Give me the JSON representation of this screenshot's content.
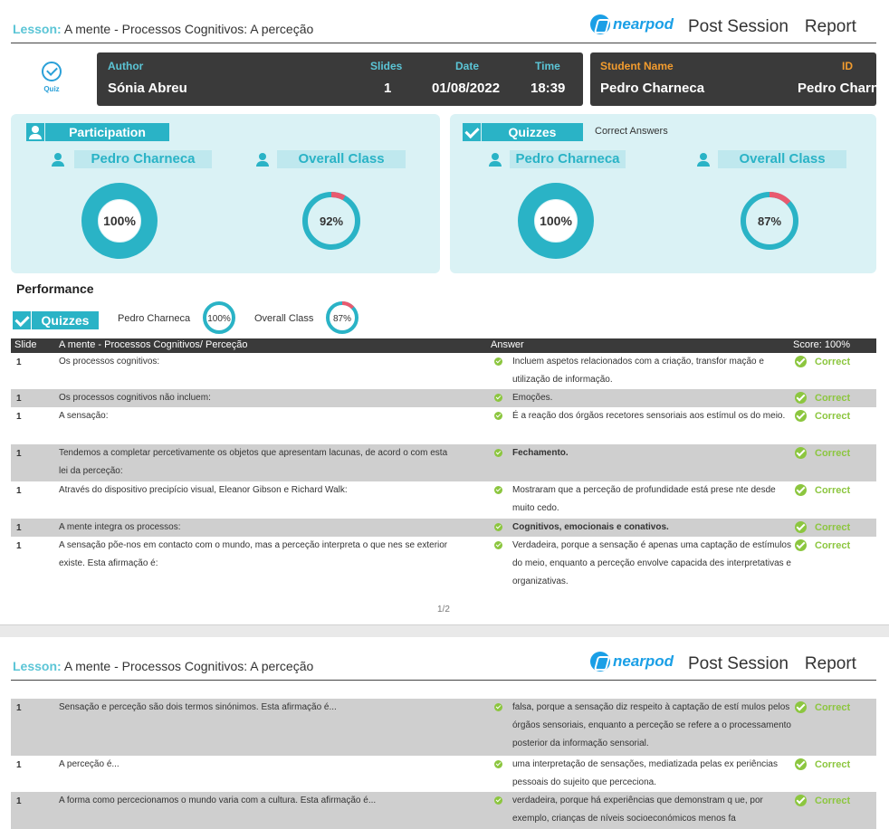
{
  "lesson": {
    "label": "Lesson:",
    "title": "A mente - Processos Cognitivos: A perceção"
  },
  "brand": {
    "name": "nearpod",
    "report_word1": "Post Session",
    "report_word2": "Report"
  },
  "quiz_icon_label": "Quiz",
  "session": {
    "author_h": "Author",
    "author": "Sónia  Abreu",
    "slides_h": "Slides",
    "slides": "1",
    "date_h": "Date",
    "date": "01/08/2022",
    "time_h": "Time",
    "time": "18:39",
    "student_h": "Student Name",
    "student": "Pedro Charneca",
    "id_h": "ID",
    "id": "Pedro Charneca"
  },
  "participation": {
    "title": "Participation",
    "student_label": "Pedro Charneca",
    "student_value": "100%",
    "student_pct": 100,
    "class_label": "Overall Class",
    "class_value": "92%",
    "class_pct": 92
  },
  "quizzes": {
    "title": "Quizzes",
    "subtitle": "Correct Answers",
    "student_label": "Pedro Charneca",
    "student_value": "100%",
    "student_pct": 100,
    "class_label": "Overall Class",
    "class_value": "87%",
    "class_pct": 87
  },
  "performance": {
    "title": "Performance",
    "tag": "Quizzes",
    "student_label": "Pedro Charneca",
    "student_value": "100%",
    "class_label": "Overall Class",
    "class_value": "87%"
  },
  "table": {
    "col_slide": "Slide",
    "col_question": "A mente - Processos Cognitivos/ Perceção",
    "col_answer": "Answer",
    "col_score": "Score: 100%",
    "correct_label": "Correct"
  },
  "rows_p1": [
    {
      "slide": "1",
      "q": "Os processos cognitivos:",
      "a": "Incluem aspetos relacionados com a criação, transfor mação e utilização de informação.",
      "bold": false
    },
    {
      "slide": "1",
      "q": "Os processos cognitivos não incluem:",
      "a": "Emoções.",
      "bold": false
    },
    {
      "slide": "1",
      "q": "A sensação:",
      "a": "É a reação dos órgãos recetores sensoriais aos estímul os do meio.",
      "bold": false
    },
    {
      "slide": "1",
      "q": "Tendemos a completar percetivamente os objetos que apresentam lacunas, de acord o com esta lei da perceção:",
      "a": "Fechamento.",
      "bold": true
    },
    {
      "slide": "1",
      "q": "Através do dispositivo precipício visual, Eleanor Gibson e Richard Walk:",
      "a": "Mostraram que a perceção de profundidade está prese nte desde muito cedo.",
      "bold": false
    },
    {
      "slide": "1",
      "q": "A mente integra os processos:",
      "a": "Cognitivos, emocionais e conativos.",
      "bold": true
    },
    {
      "slide": "1",
      "q": "A sensação põe-nos em contacto com o mundo, mas a perceção interpreta o que nes se exterior existe. Esta afirmação é:",
      "a": "Verdadeira, porque a sensação é apenas uma captação de estímulos do meio, enquanto a perceção envolve capacida des interpretativas e organizativas.",
      "bold": false
    }
  ],
  "page_number": "1/2",
  "rows_p2": [
    {
      "slide": "1",
      "q": "Sensação e perceção são dois termos sinónimos. Esta afirmação é...",
      "a": "falsa, porque a sensação diz respeito à captação de estí mulos pelos órgãos sensoriais, enquanto a perceção se refere a o processamento posterior da informação sensorial.",
      "bold": false
    },
    {
      "slide": "1",
      "q": "A perceção é...",
      "a": "uma interpretação de sensações, mediatizada pelas ex periências pessoais do sujeito que perceciona.",
      "bold": false
    },
    {
      "slide": "1",
      "q": "A forma como percecionamos o mundo varia com a cultura. Esta afirmação é...",
      "a": "verdadeira, porque há experiências que demonstram q ue, por exemplo, crianças de níveis socioeconómicos menos fa",
      "bold": false
    }
  ],
  "colors": {
    "teal": "#2ab3c6",
    "panel": "#daf2f5",
    "ring_bg": "#2ab3c6",
    "ring_miss": "#e95a6f",
    "correct": "#8cc63f",
    "dark": "#3a3a3a"
  }
}
